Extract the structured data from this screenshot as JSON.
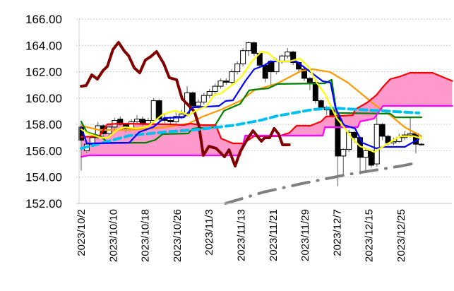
{
  "chart_data": {
    "type": "candlestick-ichimoku",
    "title": "",
    "ylim": [
      152,
      166
    ],
    "yticks": [
      "152.00",
      "154.00",
      "156.00",
      "158.00",
      "160.00",
      "162.00",
      "164.00",
      "166.00"
    ],
    "x_tick_labels": [
      "2023/10/2",
      "2023/10/10",
      "2023/10/18",
      "2023/10/26",
      "2023/11/3",
      "2023/11/13",
      "2023/11/21",
      "2023/11/29",
      "2023/12/7",
      "2023/12/15",
      "2023/12/25"
    ],
    "candles_ohlc": [
      [
        157.8,
        158.1,
        154.5,
        156.8
      ],
      [
        156.0,
        156.7,
        155.8,
        156.5
      ],
      [
        156.5,
        157.1,
        156.3,
        157.0
      ],
      [
        157.0,
        158.2,
        156.9,
        157.9
      ],
      [
        157.9,
        158.0,
        157.0,
        157.3
      ],
      [
        157.3,
        158.0,
        157.1,
        157.8
      ],
      [
        157.8,
        158.5,
        157.6,
        158.3
      ],
      [
        158.4,
        158.6,
        157.9,
        158.0
      ],
      [
        158.0,
        158.1,
        157.4,
        157.7
      ],
      [
        157.7,
        158.4,
        157.6,
        158.2
      ],
      [
        158.2,
        158.7,
        158.0,
        158.4
      ],
      [
        158.4,
        158.6,
        157.8,
        158.0
      ],
      [
        158.0,
        158.5,
        157.9,
        158.3
      ],
      [
        158.3,
        160.0,
        158.2,
        159.8
      ],
      [
        159.8,
        159.9,
        158.2,
        158.4
      ],
      [
        158.4,
        158.8,
        158.1,
        158.3
      ],
      [
        158.3,
        158.6,
        157.9,
        158.2
      ],
      [
        158.2,
        158.9,
        158.0,
        158.6
      ],
      [
        158.6,
        159.1,
        158.4,
        158.8
      ],
      [
        158.8,
        160.9,
        158.6,
        160.4
      ],
      [
        160.4,
        160.5,
        159.3,
        159.4
      ],
      [
        159.4,
        159.9,
        159.2,
        159.7
      ],
      [
        159.7,
        160.4,
        159.5,
        160.2
      ],
      [
        160.2,
        160.7,
        160.0,
        160.5
      ],
      [
        160.5,
        161.1,
        160.3,
        160.9
      ],
      [
        160.9,
        161.5,
        160.7,
        161.3
      ],
      [
        161.3,
        161.5,
        161.0,
        161.2
      ],
      [
        161.2,
        162.2,
        161.0,
        162.0
      ],
      [
        162.0,
        162.8,
        161.8,
        162.6
      ],
      [
        162.6,
        163.8,
        162.4,
        163.6
      ],
      [
        163.6,
        164.3,
        163.2,
        164.2
      ],
      [
        164.2,
        164.3,
        163.2,
        163.4
      ],
      [
        163.4,
        163.5,
        162.3,
        162.5
      ],
      [
        162.5,
        162.6,
        161.2,
        161.5
      ],
      [
        162.8,
        162.9,
        160.8,
        162.0
      ],
      [
        162.0,
        163.0,
        161.8,
        162.8
      ],
      [
        162.8,
        163.3,
        162.6,
        163.2
      ],
      [
        163.2,
        163.8,
        163.0,
        163.5
      ],
      [
        163.5,
        163.6,
        162.5,
        162.7
      ],
      [
        162.7,
        162.8,
        161.9,
        162.2
      ],
      [
        162.2,
        162.3,
        161.3,
        161.5
      ],
      [
        161.5,
        161.6,
        160.6,
        161.2
      ],
      [
        161.2,
        161.3,
        159.6,
        159.8
      ],
      [
        159.8,
        159.9,
        159.1,
        159.3
      ],
      [
        159.3,
        159.4,
        158.7,
        159.1
      ],
      [
        159.1,
        159.2,
        158.5,
        158.7
      ],
      [
        158.7,
        158.8,
        153.3,
        155.6
      ],
      [
        155.6,
        156.2,
        154.2,
        156.1
      ],
      [
        156.1,
        157.6,
        155.9,
        157.4
      ],
      [
        157.4,
        157.5,
        156.6,
        157.0
      ],
      [
        157.0,
        157.1,
        154.2,
        155.5
      ],
      [
        155.5,
        156.2,
        154.5,
        156.0
      ],
      [
        156.0,
        156.1,
        154.7,
        154.9
      ],
      [
        155.0,
        158.7,
        154.8,
        158.0
      ],
      [
        158.0,
        158.1,
        156.8,
        157.1
      ],
      [
        157.1,
        157.2,
        156.4,
        156.6
      ],
      [
        156.6,
        157.0,
        156.4,
        156.7
      ],
      [
        156.7,
        157.3,
        156.6,
        157.0
      ],
      [
        157.0,
        157.5,
        156.8,
        157.2
      ],
      [
        157.2,
        158.6,
        157.0,
        157.3
      ],
      [
        157.3,
        157.4,
        155.8,
        156.5
      ],
      [
        156.5,
        156.6,
        156.4,
        156.5
      ]
    ],
    "series": [
      {
        "name": "span-a",
        "color": "#ff0000",
        "points": [
          [
            0,
            157.04
          ],
          [
            3.2,
            157.1
          ],
          [
            4.7,
            158.01
          ],
          [
            7,
            158.06
          ],
          [
            15.8,
            158.01
          ],
          [
            18.4,
            157.95
          ],
          [
            19.6,
            158.06
          ],
          [
            21.5,
            157.95
          ],
          [
            24.1,
            157.95
          ],
          [
            25.1,
            156.93
          ],
          [
            27.2,
            156.56
          ],
          [
            29.1,
            156.56
          ],
          [
            31,
            157.1
          ],
          [
            35.4,
            157.1
          ],
          [
            37.3,
            157.36
          ],
          [
            38.6,
            157.9
          ],
          [
            41.1,
            157.9
          ],
          [
            43,
            158.22
          ],
          [
            43.9,
            158.6
          ],
          [
            48.7,
            158.7
          ],
          [
            49.1,
            159.13
          ],
          [
            51.3,
            159.67
          ],
          [
            52.9,
            160.21
          ],
          [
            54.2,
            160.9
          ],
          [
            55.4,
            161.44
          ],
          [
            57.3,
            161.66
          ],
          [
            58.9,
            161.92
          ],
          [
            63,
            161.92
          ],
          [
            66.5,
            161.3
          ]
        ]
      },
      {
        "name": "span-b",
        "color": "#ff00ff",
        "points": [
          [
            0,
            155.54
          ],
          [
            1.3,
            155.65
          ],
          [
            28.5,
            155.65
          ],
          [
            29.4,
            157.15
          ],
          [
            31.6,
            157.15
          ],
          [
            43.3,
            157.15
          ],
          [
            43.7,
            157.79
          ],
          [
            49.6,
            157.79
          ],
          [
            50.0,
            158.22
          ],
          [
            52.5,
            158.44
          ],
          [
            54.1,
            159.4
          ],
          [
            66.5,
            159.4
          ]
        ]
      },
      {
        "name": "lagging-span",
        "color": "#800000",
        "points": [
          [
            0,
            160.9
          ],
          [
            0.9,
            160.96
          ],
          [
            1.9,
            161.76
          ],
          [
            2.9,
            161.44
          ],
          [
            3.9,
            162.08
          ],
          [
            4.7,
            162.41
          ],
          [
            5.7,
            163.69
          ],
          [
            6.7,
            164.23
          ],
          [
            7.7,
            163.59
          ],
          [
            8.5,
            163.21
          ],
          [
            9.5,
            162.3
          ],
          [
            10.5,
            161.92
          ],
          [
            11.5,
            162.89
          ],
          [
            12.5,
            163.16
          ],
          [
            13.5,
            163.53
          ],
          [
            14.8,
            162.62
          ],
          [
            15.8,
            161.55
          ],
          [
            17.1,
            161.39
          ],
          [
            18.1,
            159.94
          ],
          [
            19.1,
            159.51
          ],
          [
            20.3,
            158.98
          ],
          [
            21.1,
            157.9
          ],
          [
            21.9,
            155.65
          ],
          [
            22.9,
            156.34
          ],
          [
            24.2,
            156.18
          ],
          [
            25.7,
            155.54
          ],
          [
            26.5,
            156.07
          ],
          [
            27.6,
            154.84
          ],
          [
            28.5,
            155.91
          ],
          [
            29.7,
            156.83
          ],
          [
            30.8,
            157.52
          ],
          [
            32.3,
            156.72
          ],
          [
            32.9,
            156.99
          ],
          [
            33.8,
            156.99
          ],
          [
            34.6,
            157.69
          ],
          [
            35.4,
            157.26
          ],
          [
            36.1,
            156.45
          ],
          [
            37.3,
            156.45
          ]
        ]
      },
      {
        "name": "ma-yellow",
        "color": "#ffff00",
        "points": [
          [
            0,
            157.63
          ],
          [
            1,
            157.36
          ],
          [
            3.5,
            156.99
          ],
          [
            4.8,
            156.99
          ],
          [
            6.6,
            157.63
          ],
          [
            7.8,
            157.79
          ],
          [
            9.9,
            157.69
          ],
          [
            12,
            157.85
          ],
          [
            14.6,
            158.76
          ],
          [
            16.7,
            159.03
          ],
          [
            18.4,
            158.87
          ],
          [
            19.2,
            158.7
          ],
          [
            20.5,
            159.03
          ],
          [
            22.5,
            159.4
          ],
          [
            23.8,
            160.21
          ],
          [
            25.1,
            160.37
          ],
          [
            27.6,
            161.17
          ],
          [
            28.9,
            161.71
          ],
          [
            30.6,
            162.78
          ],
          [
            32.3,
            163.53
          ],
          [
            33.5,
            163.43
          ],
          [
            35.2,
            162.78
          ],
          [
            37.3,
            162.78
          ],
          [
            39.2,
            163.0
          ],
          [
            40.8,
            162.35
          ],
          [
            42.2,
            161.17
          ],
          [
            43.7,
            160.31
          ],
          [
            44.9,
            159.24
          ],
          [
            45.8,
            158.49
          ],
          [
            47.1,
            157.79
          ],
          [
            48.7,
            156.88
          ],
          [
            50,
            156.34
          ],
          [
            52.5,
            155.91
          ],
          [
            54.2,
            156.34
          ],
          [
            56.3,
            156.88
          ],
          [
            57.3,
            157.1
          ],
          [
            59.7,
            157.1
          ],
          [
            61,
            156.93
          ]
        ]
      },
      {
        "name": "ma-blue",
        "color": "#0000ff",
        "points": [
          [
            0,
            157.79
          ],
          [
            1,
            156.56
          ],
          [
            1.9,
            156.56
          ],
          [
            8.6,
            156.61
          ],
          [
            10.4,
            157.42
          ],
          [
            12.9,
            157.79
          ],
          [
            14.9,
            158.49
          ],
          [
            18.4,
            158.54
          ],
          [
            20,
            159.29
          ],
          [
            24.7,
            159.4
          ],
          [
            25.9,
            159.78
          ],
          [
            27.2,
            159.83
          ],
          [
            29.4,
            161.28
          ],
          [
            31,
            162.19
          ],
          [
            32.7,
            162.46
          ],
          [
            33.9,
            162.78
          ],
          [
            38.6,
            162.78
          ],
          [
            43.3,
            161.28
          ],
          [
            44.7,
            161.17
          ],
          [
            45.6,
            159.24
          ],
          [
            47.1,
            157.95
          ],
          [
            49.1,
            157.69
          ],
          [
            50.4,
            156.61
          ],
          [
            52.9,
            156.18
          ],
          [
            54.2,
            156.29
          ],
          [
            58,
            156.29
          ],
          [
            60.5,
            156.88
          ]
        ]
      },
      {
        "name": "ma-green",
        "color": "#008000",
        "points": [
          [
            0,
            158.22
          ],
          [
            1,
            157.42
          ],
          [
            3.5,
            157.1
          ],
          [
            4.8,
            156.61
          ],
          [
            11.6,
            156.61
          ],
          [
            13.3,
            156.83
          ],
          [
            14.6,
            157.26
          ],
          [
            19.2,
            157.31
          ],
          [
            20,
            157.69
          ],
          [
            23.8,
            157.79
          ],
          [
            25.6,
            159.03
          ],
          [
            28.5,
            159.56
          ],
          [
            30.1,
            160.58
          ],
          [
            31,
            160.64
          ],
          [
            33.5,
            160.74
          ],
          [
            35.2,
            161.07
          ],
          [
            43.7,
            161.12
          ],
          [
            44.9,
            161.39
          ],
          [
            45.8,
            158.87
          ],
          [
            55.4,
            158.81
          ],
          [
            56.3,
            158.54
          ],
          [
            61,
            158.54
          ]
        ]
      },
      {
        "name": "ma-orange",
        "color": "#ff9900",
        "points": [
          [
            0,
            157.9
          ],
          [
            3.2,
            157.58
          ],
          [
            8.6,
            157.58
          ],
          [
            14.9,
            157.79
          ],
          [
            19.2,
            158.06
          ],
          [
            21.8,
            158.6
          ],
          [
            25.1,
            159.13
          ],
          [
            28.5,
            159.78
          ],
          [
            31,
            160.58
          ],
          [
            35.2,
            161.12
          ],
          [
            39.5,
            162.08
          ],
          [
            41.5,
            162.19
          ],
          [
            44.6,
            161.98
          ],
          [
            47.8,
            161.17
          ],
          [
            50.9,
            160.1
          ],
          [
            52.9,
            159.4
          ],
          [
            55.4,
            158.7
          ],
          [
            58,
            157.79
          ],
          [
            61,
            157.1
          ]
        ]
      },
      {
        "name": "trendline-cyan",
        "color": "#00c0f0",
        "points": [
          [
            0,
            156.18
          ],
          [
            3.5,
            156.56
          ],
          [
            8.6,
            157.15
          ],
          [
            14.9,
            157.42
          ],
          [
            21.3,
            157.63
          ],
          [
            27.6,
            157.95
          ],
          [
            32.3,
            158.33
          ],
          [
            35.2,
            158.65
          ],
          [
            41.5,
            159.13
          ],
          [
            44.9,
            159.24
          ],
          [
            50,
            159.13
          ],
          [
            60.5,
            158.87
          ]
        ]
      },
      {
        "name": "trendline-gray",
        "color": "#808080",
        "points": [
          [
            25.9,
            152.0
          ],
          [
            32.7,
            152.86
          ],
          [
            39.5,
            153.5
          ],
          [
            47.8,
            154.2
          ],
          [
            57.3,
            154.84
          ],
          [
            59.2,
            155.0
          ]
        ]
      }
    ],
    "cloud_fill": "#ff99cc",
    "grid": true
  }
}
